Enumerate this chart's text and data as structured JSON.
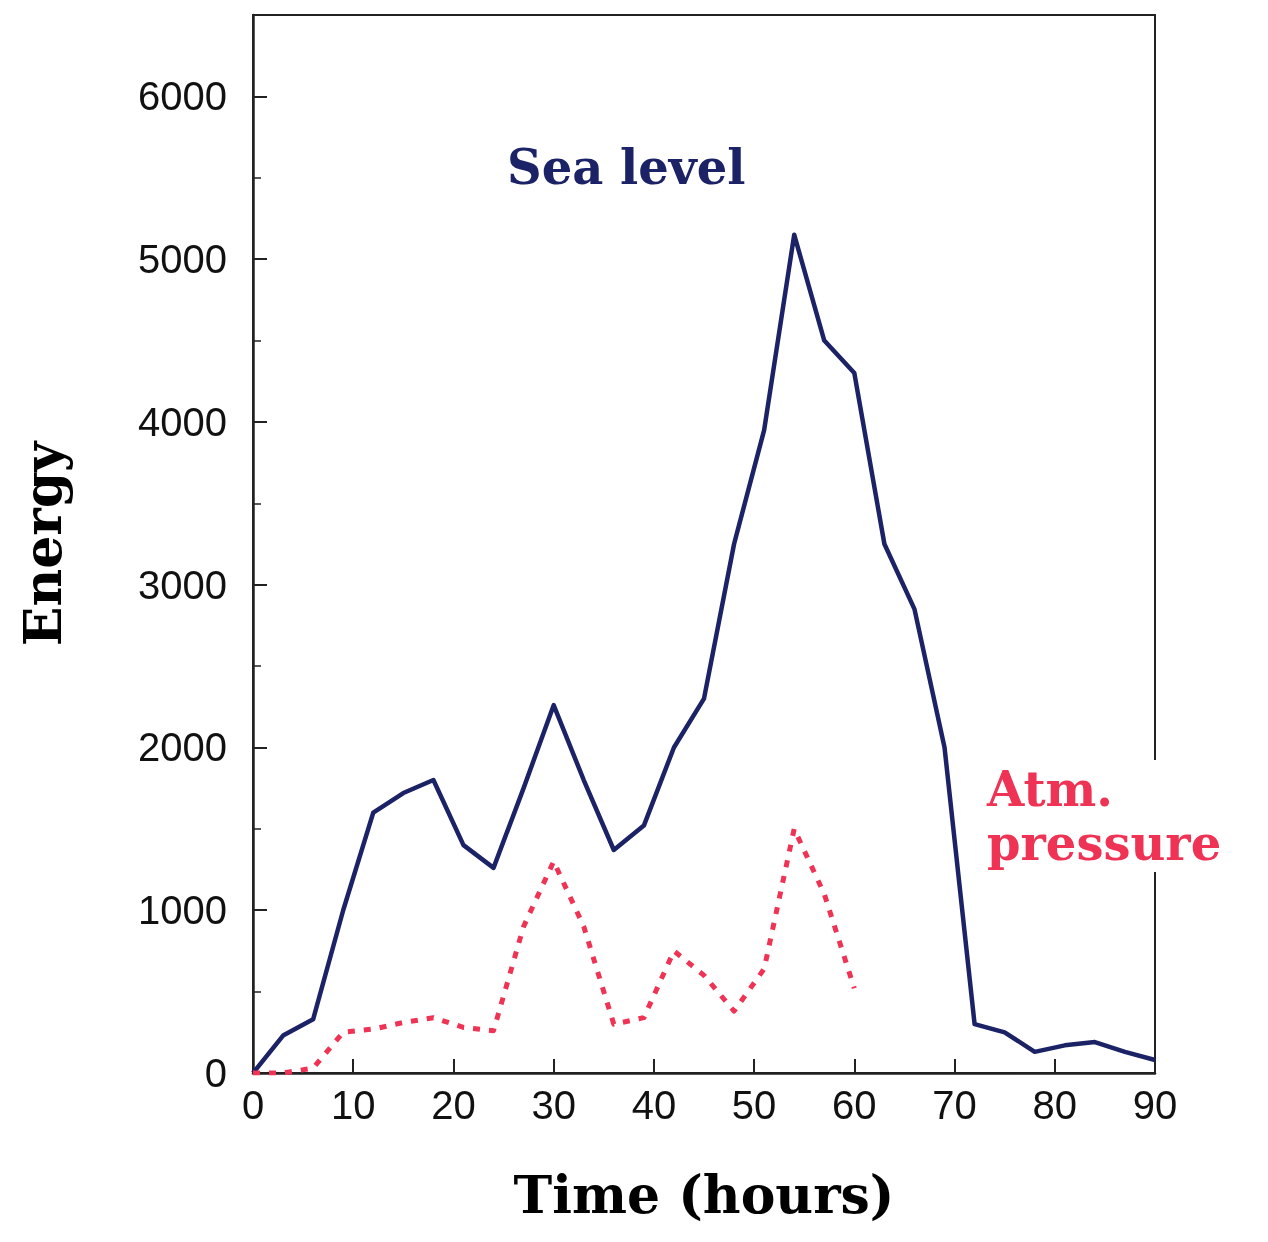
{
  "chart_data": {
    "type": "line",
    "xlabel": "Time (hours)",
    "ylabel": "Energy",
    "x": [
      0,
      3,
      6,
      9,
      12,
      15,
      18,
      21,
      24,
      27,
      30,
      33,
      36,
      39,
      42,
      45,
      48,
      51,
      54,
      57,
      60,
      63,
      66,
      69,
      72,
      75,
      78,
      81,
      84,
      87,
      90
    ],
    "series": [
      {
        "name": "Sea level",
        "color": "#1c2266",
        "line_style": "solid",
        "values": [
          0,
          230,
          330,
          1000,
          1600,
          1720,
          1800,
          1400,
          1260,
          1750,
          2260,
          1800,
          1370,
          1520,
          2000,
          2300,
          3250,
          3950,
          5150,
          4500,
          4300,
          3250,
          2850,
          2000,
          300,
          250,
          130,
          170,
          190,
          130,
          80
        ]
      },
      {
        "name": "Atm. pressure",
        "color": "#ee3355",
        "line_style": "dotted",
        "values": [
          0,
          0,
          30,
          250,
          270,
          310,
          340,
          280,
          260,
          900,
          1300,
          900,
          300,
          340,
          750,
          600,
          380,
          640,
          1500,
          1100,
          520,
          null,
          null,
          null,
          null,
          null,
          null,
          null,
          null,
          null,
          null
        ]
      }
    ],
    "xlim": [
      0,
      90
    ],
    "xticks": [
      0,
      10,
      20,
      30,
      40,
      50,
      60,
      70,
      80,
      90
    ],
    "ylim": [
      0,
      6500
    ],
    "yticks": [
      0,
      1000,
      2000,
      3000,
      4000,
      5000,
      6000
    ],
    "grid": false,
    "legend": false,
    "marker": "none"
  }
}
